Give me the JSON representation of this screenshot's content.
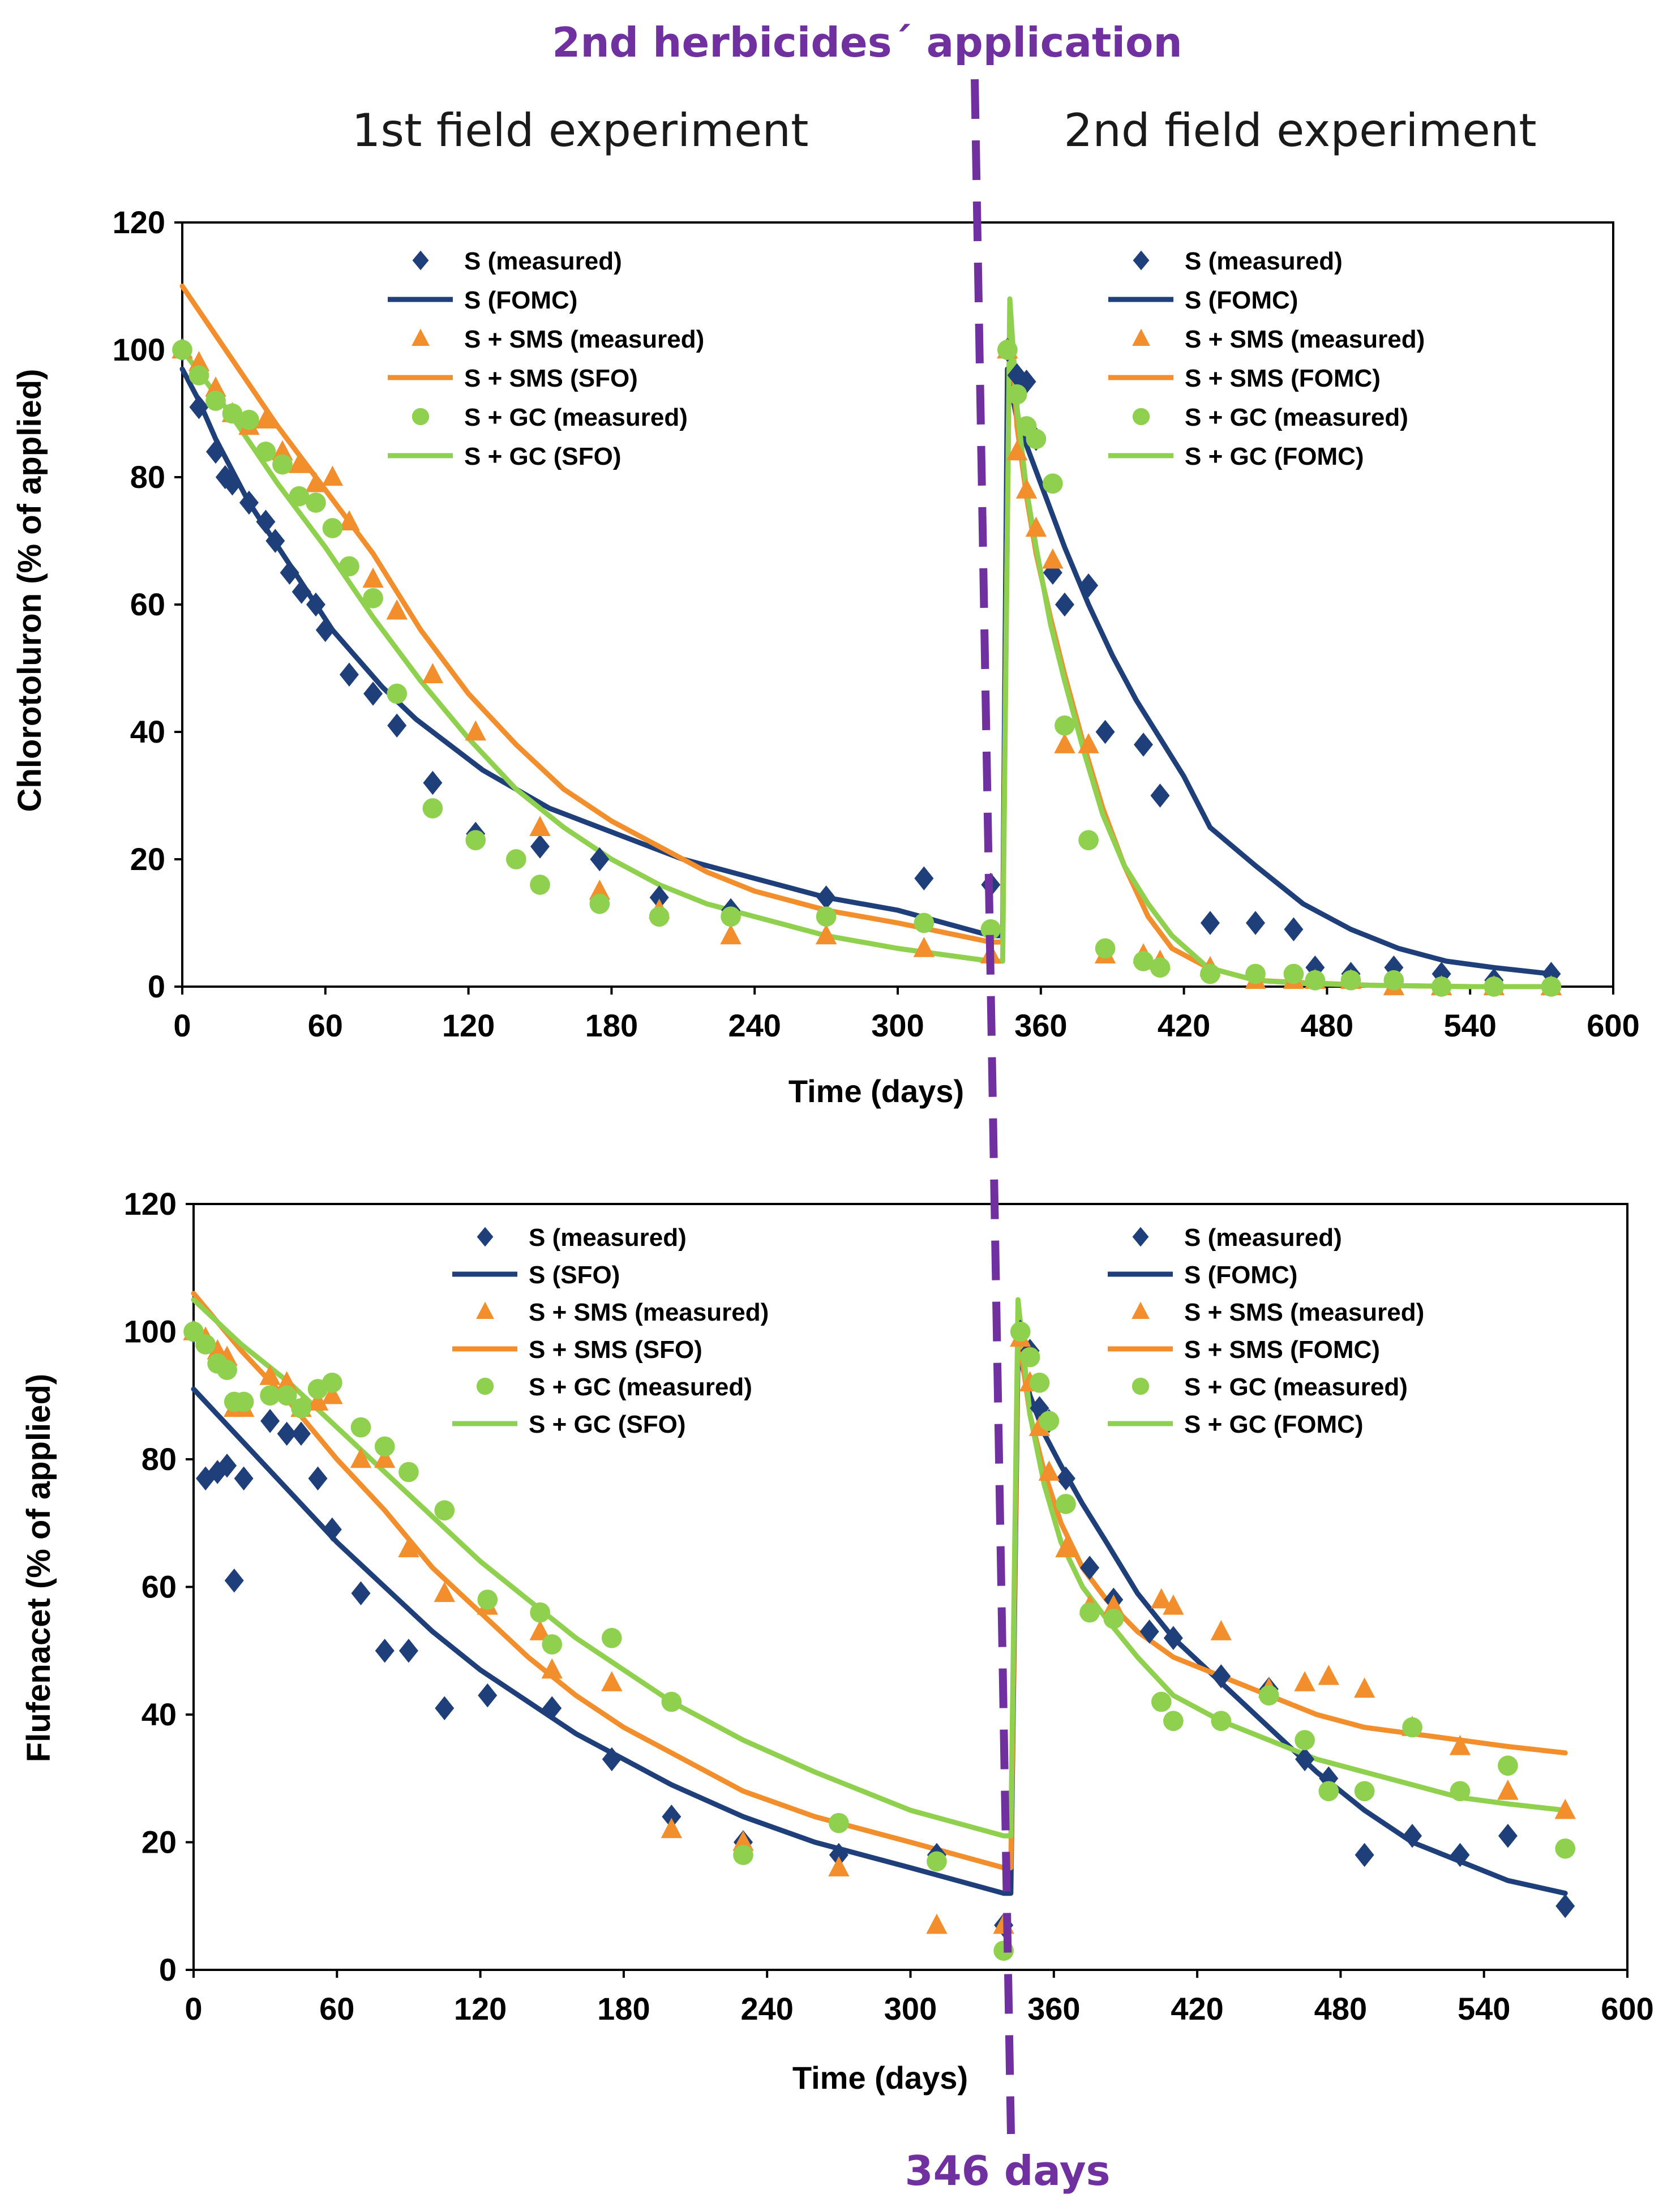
{
  "figure": {
    "application_label": "2nd herbicides´ application",
    "application_day_label": "346 days",
    "experiment_titles": [
      "1st field experiment",
      "2nd field experiment"
    ],
    "colors": {
      "S": "#1f3f7a",
      "SMS": "#f28e2b",
      "GC": "#8fd14f",
      "marker_line": "#7030a0",
      "axis": "#000000"
    }
  },
  "chart_data": [
    {
      "type": "scatter",
      "title": "Chlorotoluron",
      "xlabel": "Time (days)",
      "ylabel": "Chlorotoluron (% of applied)",
      "xlim": [
        0,
        600
      ],
      "ylim": [
        0,
        120
      ],
      "xticks": [
        0,
        60,
        120,
        180,
        240,
        300,
        360,
        420,
        480,
        540,
        600
      ],
      "yticks": [
        0,
        20,
        40,
        60,
        80,
        100,
        120
      ],
      "legends": [
        {
          "position": "top-left",
          "entries": [
            "S (measured)",
            "S (FOMC)",
            "S + SMS (measured)",
            "S + SMS (SFO)",
            "S + GC (measured)",
            "S + GC (SFO)"
          ]
        },
        {
          "position": "top-right",
          "entries": [
            "S (measured)",
            "S (FOMC)",
            "S + SMS (measured)",
            "S + SMS (FOMC)",
            "S + GC (measured)",
            "S + GC (FOMC)"
          ]
        }
      ],
      "series": [
        {
          "name": "S (measured)",
          "kind": "points",
          "marker": "diamond",
          "color": "#1f3f7a",
          "x": [
            0,
            7,
            14,
            18,
            21,
            28,
            35,
            39,
            45,
            50,
            56,
            60,
            70,
            80,
            90,
            105,
            123,
            150,
            175,
            200,
            230,
            270,
            311,
            339,
            346,
            350,
            354,
            358,
            365,
            370,
            380,
            387,
            403,
            410,
            431,
            450,
            466,
            475,
            490,
            508,
            528,
            550,
            574
          ],
          "y": [
            100,
            91,
            84,
            80,
            79,
            76,
            73,
            70,
            65,
            62,
            60,
            56,
            49,
            46,
            41,
            32,
            24,
            22,
            20,
            14,
            12,
            14,
            17,
            16,
            100,
            96,
            95,
            86,
            65,
            60,
            63,
            40,
            38,
            30,
            10,
            10,
            9,
            3,
            2,
            3,
            2,
            1,
            2
          ]
        },
        {
          "name": "S (FOMC)",
          "kind": "line",
          "color": "#1f3f7a",
          "x": [
            0,
            7,
            14,
            21,
            28,
            35,
            42,
            49,
            56,
            63,
            70,
            84,
            98,
            112,
            126,
            140,
            154,
            168,
            182,
            196,
            210,
            240,
            270,
            300,
            339,
            344,
            346,
            350,
            356,
            363,
            370,
            380,
            390,
            400,
            410,
            420,
            431,
            450,
            470,
            490,
            510,
            530,
            550,
            574
          ],
          "y": [
            97,
            92,
            86,
            81,
            76,
            72,
            68,
            64,
            60,
            56,
            53,
            47,
            42,
            38,
            34,
            31,
            28,
            26,
            24,
            22,
            20,
            17,
            14,
            12,
            8,
            8,
            97,
            89,
            83,
            76,
            69,
            60,
            52,
            45,
            39,
            33,
            25,
            19,
            13,
            9,
            6,
            4,
            3,
            2
          ]
        },
        {
          "name": "S + SMS (measured)",
          "kind": "points",
          "marker": "triangle",
          "color": "#f28e2b",
          "x": [
            0,
            7,
            14,
            21,
            28,
            35,
            42,
            49,
            56,
            63,
            70,
            80,
            90,
            105,
            123,
            150,
            175,
            200,
            230,
            270,
            311,
            339,
            346,
            350,
            354,
            358,
            365,
            370,
            380,
            387,
            403,
            410,
            431,
            450,
            466,
            475,
            490,
            508,
            528,
            550,
            574
          ],
          "y": [
            100,
            98,
            94,
            90,
            88,
            89,
            84,
            82,
            79,
            80,
            73,
            64,
            59,
            49,
            40,
            25,
            15,
            12,
            8,
            8,
            6,
            5,
            100,
            84,
            78,
            72,
            67,
            38,
            38,
            5,
            5,
            4,
            3,
            1,
            1,
            1,
            1,
            0,
            0,
            0,
            0
          ]
        },
        {
          "name": "S + SMS (SFO)",
          "kind": "line",
          "color": "#f28e2b",
          "x": [
            0,
            20,
            40,
            60,
            80,
            100,
            120,
            140,
            160,
            180,
            200,
            220,
            240,
            270,
            300,
            339,
            344,
            347,
            350,
            354,
            358,
            364,
            370,
            378,
            386,
            395,
            405,
            415,
            430,
            450,
            470,
            500,
            540,
            574
          ],
          "y": [
            110,
            99,
            88,
            78,
            68,
            56,
            46,
            38,
            31,
            26,
            22,
            18,
            15,
            12,
            10,
            7,
            7,
            106,
            88,
            77,
            68,
            58,
            49,
            38,
            28,
            19,
            11,
            6,
            3,
            1,
            0.6,
            0.2,
            0,
            0
          ]
        },
        {
          "name": "S + GC (measured)",
          "kind": "points",
          "marker": "circle",
          "color": "#8fd14f",
          "x": [
            0,
            7,
            14,
            21,
            28,
            35,
            42,
            49,
            56,
            63,
            70,
            80,
            90,
            105,
            123,
            140,
            150,
            175,
            200,
            230,
            270,
            311,
            339,
            346,
            350,
            354,
            358,
            365,
            370,
            380,
            387,
            403,
            410,
            431,
            450,
            466,
            475,
            490,
            508,
            528,
            550,
            574
          ],
          "y": [
            100,
            96,
            92,
            90,
            89,
            84,
            82,
            77,
            76,
            72,
            66,
            61,
            46,
            28,
            23,
            20,
            16,
            13,
            11,
            11,
            11,
            10,
            9,
            100,
            93,
            88,
            86,
            79,
            41,
            23,
            6,
            4,
            3,
            2,
            2,
            2,
            1,
            1,
            1,
            0,
            0,
            0
          ]
        },
        {
          "name": "S + GC (SFO)",
          "kind": "line",
          "color": "#8fd14f",
          "x": [
            0,
            20,
            40,
            60,
            80,
            100,
            120,
            140,
            160,
            180,
            200,
            220,
            240,
            270,
            300,
            339,
            344,
            347,
            350,
            354,
            358,
            364,
            370,
            378,
            386,
            395,
            405,
            415,
            430,
            450,
            470,
            500,
            540,
            574
          ],
          "y": [
            100,
            90,
            79,
            69,
            58,
            48,
            39,
            31,
            25,
            20,
            16,
            13,
            11,
            8,
            6,
            4,
            4,
            108,
            91,
            78,
            69,
            57,
            48,
            37,
            27,
            19,
            13,
            8,
            3,
            1,
            0.5,
            0.2,
            0,
            0
          ]
        }
      ]
    },
    {
      "type": "scatter",
      "title": "Flufenacet",
      "xlabel": "Time (days)",
      "ylabel": "Flufenacet (% of applied)",
      "xlim": [
        0,
        600
      ],
      "ylim": [
        0,
        120
      ],
      "xticks": [
        0,
        60,
        120,
        180,
        240,
        300,
        360,
        420,
        480,
        540,
        600
      ],
      "yticks": [
        0,
        20,
        40,
        60,
        80,
        100,
        120
      ],
      "legends": [
        {
          "position": "top-left",
          "entries": [
            "S (measured)",
            "S (SFO)",
            "S + SMS (measured)",
            "S + SMS (SFO)",
            "S + GC (measured)",
            "S + GC (SFO)"
          ]
        },
        {
          "position": "top-right",
          "entries": [
            "S (measured)",
            "S (FOMC)",
            "S + SMS (measured)",
            "S + SMS (FOMC)",
            "S + GC (measured)",
            "S + GC (FOMC)"
          ]
        }
      ],
      "series": [
        {
          "name": "S (measured)",
          "kind": "points",
          "marker": "diamond",
          "color": "#1f3f7a",
          "x": [
            0,
            5,
            10,
            14,
            17,
            21,
            32,
            39,
            45,
            52,
            58,
            70,
            80,
            90,
            105,
            123,
            150,
            175,
            200,
            230,
            270,
            311,
            339,
            346,
            350,
            354,
            358,
            365,
            375,
            385,
            400,
            410,
            430,
            450,
            465,
            475,
            490,
            510,
            530,
            550,
            574
          ],
          "y": [
            100,
            77,
            78,
            79,
            61,
            77,
            86,
            84,
            84,
            77,
            69,
            59,
            50,
            50,
            41,
            43,
            41,
            33,
            24,
            20,
            18,
            18,
            7,
            100,
            97,
            88,
            86,
            77,
            63,
            58,
            53,
            52,
            46,
            44,
            33,
            30,
            18,
            21,
            18,
            21,
            10
          ]
        },
        {
          "name": "S (SFO)",
          "kind": "line",
          "color": "#1f3f7a",
          "x": [
            0,
            20,
            40,
            60,
            80,
            100,
            120,
            140,
            160,
            180,
            200,
            230,
            260,
            300,
            339,
            342,
            345,
            350,
            356,
            363,
            372,
            382,
            395,
            410,
            430,
            450,
            470,
            490,
            510,
            530,
            550,
            574
          ],
          "y": [
            91,
            83,
            75,
            67,
            60,
            53,
            47,
            42,
            37,
            33,
            29,
            24,
            20,
            16,
            12,
            12,
            97,
            90,
            84,
            79,
            73,
            67,
            59,
            52,
            45,
            38,
            31,
            25,
            20,
            17,
            14,
            12
          ]
        },
        {
          "name": "S + SMS (measured)",
          "kind": "points",
          "marker": "triangle",
          "color": "#f28e2b",
          "x": [
            0,
            5,
            10,
            14,
            17,
            21,
            32,
            39,
            45,
            52,
            58,
            70,
            80,
            90,
            105,
            123,
            145,
            150,
            175,
            200,
            230,
            270,
            311,
            339,
            346,
            350,
            354,
            358,
            365,
            375,
            385,
            405,
            410,
            430,
            450,
            465,
            475,
            490,
            510,
            530,
            550,
            574
          ],
          "y": [
            100,
            99,
            97,
            96,
            88,
            88,
            93,
            92,
            88,
            89,
            90,
            80,
            80,
            66,
            59,
            57,
            53,
            47,
            45,
            22,
            20,
            16,
            7,
            7,
            99,
            92,
            85,
            78,
            66,
            57,
            57,
            58,
            57,
            53,
            44,
            45,
            46,
            44,
            38,
            35,
            28,
            25
          ]
        },
        {
          "name": "S + SMS (SFO)",
          "kind": "line",
          "color": "#f28e2b",
          "x": [
            0,
            20,
            40,
            60,
            80,
            100,
            120,
            140,
            160,
            180,
            200,
            230,
            260,
            300,
            339,
            342,
            345,
            350,
            356,
            363,
            372,
            382,
            395,
            410,
            430,
            450,
            470,
            490,
            510,
            530,
            550,
            574
          ],
          "y": [
            106,
            97,
            89,
            80,
            72,
            63,
            56,
            49,
            43,
            38,
            34,
            28,
            24,
            20,
            16,
            16,
            100,
            87,
            78,
            70,
            63,
            58,
            53,
            49,
            46,
            43,
            40,
            38,
            37,
            36,
            35,
            34
          ]
        },
        {
          "name": "S + GC (measured)",
          "kind": "points",
          "marker": "circle",
          "color": "#8fd14f",
          "x": [
            0,
            5,
            10,
            14,
            17,
            21,
            32,
            39,
            45,
            52,
            58,
            70,
            80,
            90,
            105,
            123,
            145,
            150,
            175,
            200,
            230,
            270,
            311,
            339,
            346,
            350,
            354,
            358,
            365,
            375,
            385,
            405,
            410,
            430,
            450,
            465,
            475,
            490,
            510,
            530,
            550,
            574
          ],
          "y": [
            100,
            98,
            95,
            94,
            89,
            89,
            90,
            90,
            88,
            91,
            92,
            85,
            82,
            78,
            72,
            58,
            56,
            51,
            52,
            42,
            18,
            23,
            17,
            3,
            100,
            96,
            92,
            86,
            73,
            56,
            55,
            42,
            39,
            39,
            43,
            36,
            28,
            28,
            38,
            28,
            32,
            19
          ]
        },
        {
          "name": "S + GC (SFO)",
          "kind": "line",
          "color": "#8fd14f",
          "x": [
            0,
            20,
            40,
            60,
            80,
            100,
            120,
            140,
            160,
            180,
            200,
            230,
            260,
            300,
            339,
            342,
            345,
            350,
            356,
            363,
            372,
            382,
            395,
            410,
            430,
            450,
            470,
            490,
            510,
            530,
            550,
            574
          ],
          "y": [
            105,
            98,
            92,
            85,
            78,
            71,
            64,
            58,
            52,
            47,
            42,
            36,
            31,
            25,
            21,
            21,
            105,
            87,
            76,
            67,
            60,
            55,
            49,
            43,
            39,
            36,
            33,
            31,
            29,
            27,
            26,
            25
          ]
        }
      ]
    }
  ]
}
